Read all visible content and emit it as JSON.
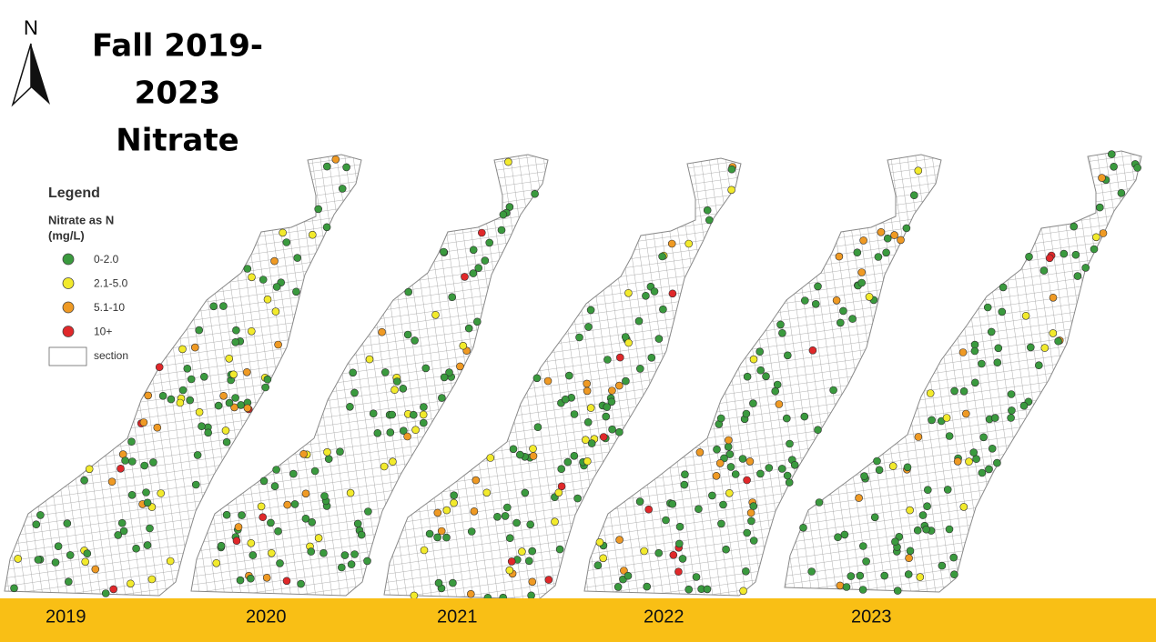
{
  "north": "N",
  "header": {
    "title_lines": [
      "Fall 2019-",
      "2023",
      "Nitrate"
    ]
  },
  "legend": {
    "title": "Legend",
    "subtitle_lines": [
      "Nitrate as N",
      "(mg/L)"
    ],
    "items": [
      {
        "label": "0-2.0",
        "color": "#3a9a3e"
      },
      {
        "label": "2.1-5.0",
        "color": "#f2ea2c"
      },
      {
        "label": "5.1-10",
        "color": "#ef9a24"
      },
      {
        "label": "10+",
        "color": "#e0282a"
      },
      {
        "label": "section"
      }
    ]
  },
  "years": [
    "2019",
    "2020",
    "2021",
    "2022",
    "2023"
  ]
}
